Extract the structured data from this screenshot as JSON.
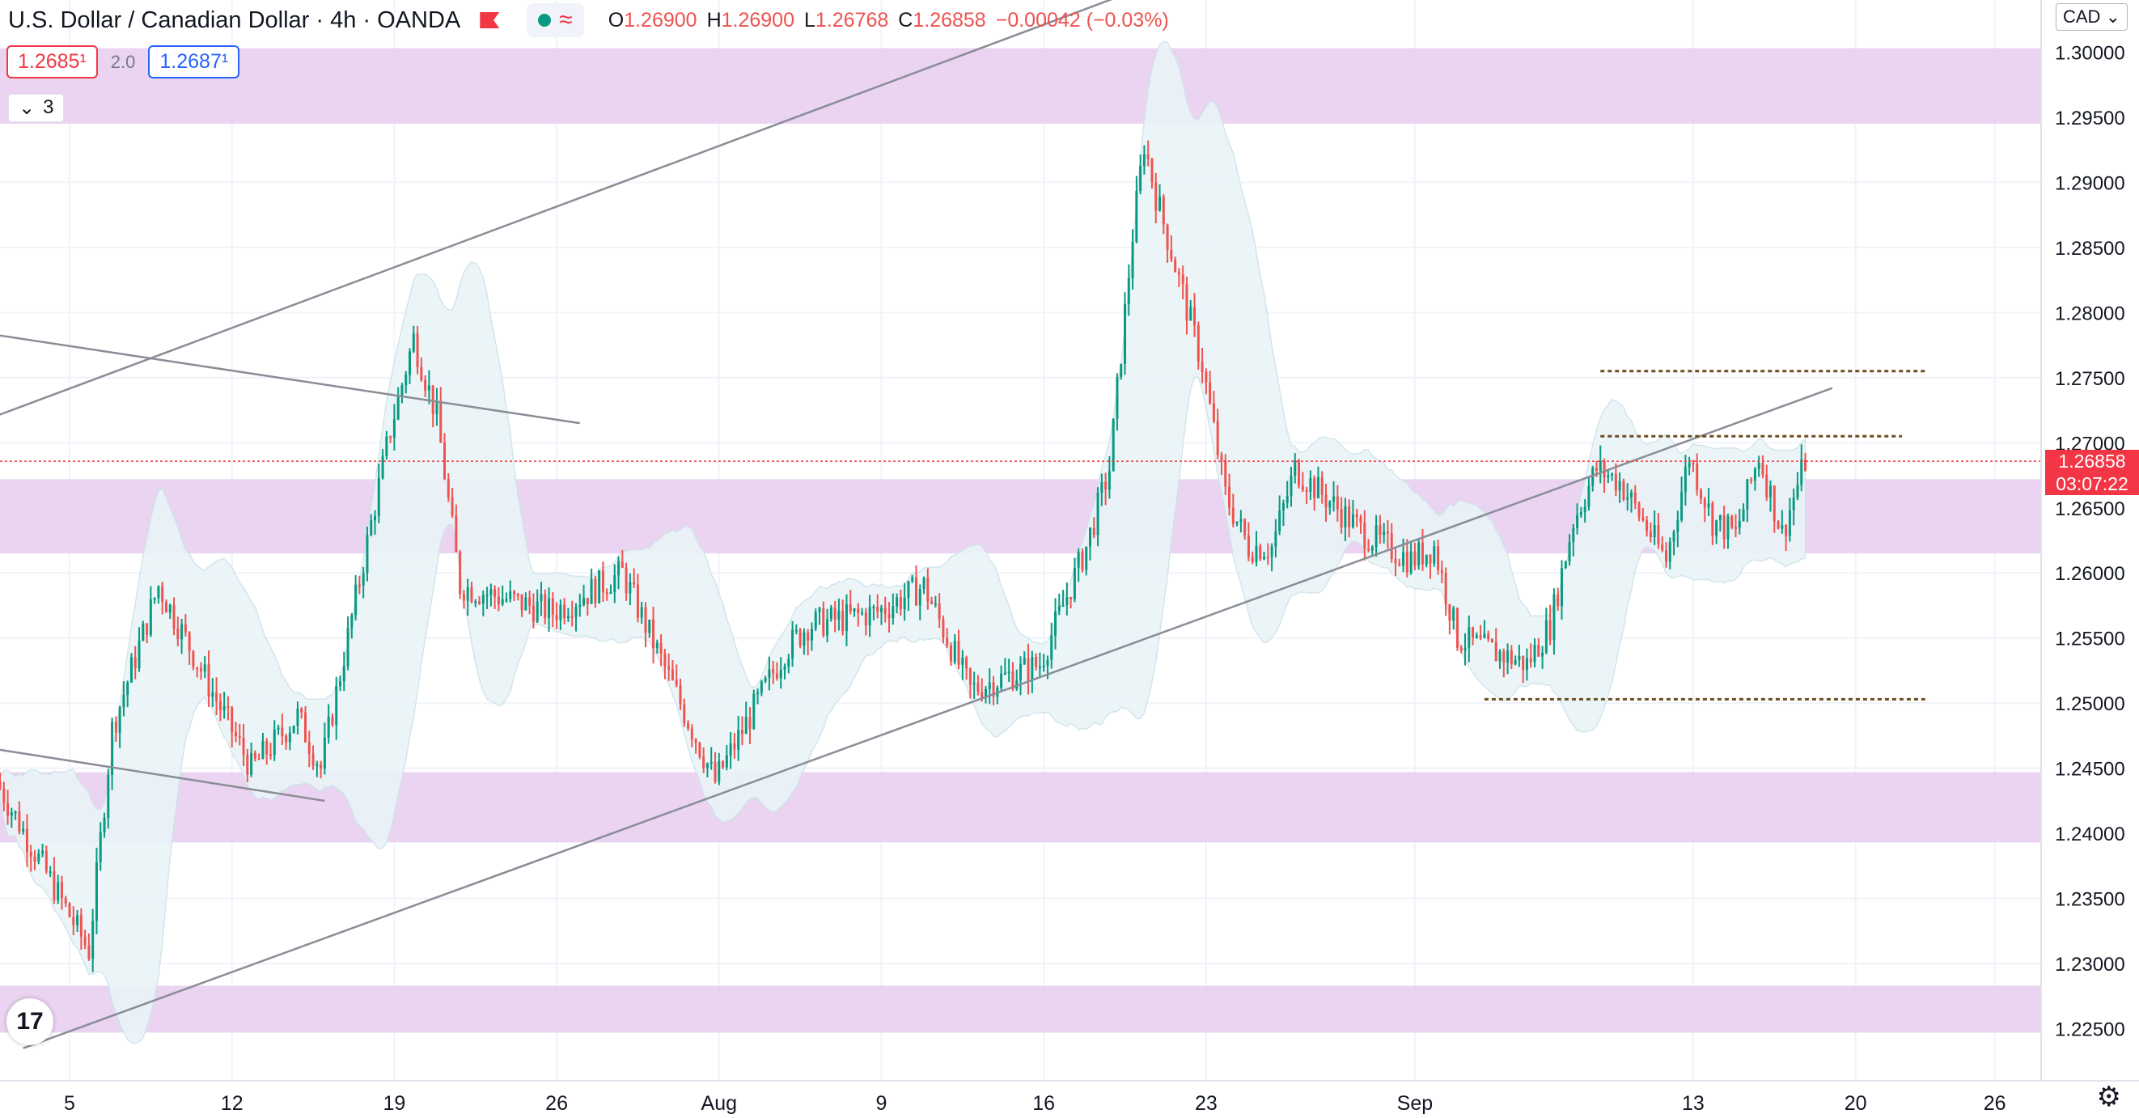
{
  "header": {
    "symbol": "U.S. Dollar / Canadian Dollar · 4h · OANDA",
    "ohlc": {
      "o": "1.26900",
      "h": "1.26900",
      "l": "1.26768",
      "c": "1.26858",
      "chg": "−0.00042 (−0.03%)"
    },
    "labels": {
      "o": "O",
      "h": "H",
      "l": "L",
      "c": "C"
    },
    "wave_glyph": "≈"
  },
  "trade": {
    "sell": "1.2685¹",
    "spread": "2.0",
    "buy": "1.2687¹"
  },
  "indicators": {
    "toggle_icon": "chevron-down-icon",
    "count": "3"
  },
  "currency": "CAD",
  "last_price": {
    "value": "1.26858",
    "countdown": "03:07:22"
  },
  "logo_text": "17",
  "colors": {
    "up": "#089981",
    "down": "#ef5350",
    "zone": "#e6cdee",
    "band": "#e9f5f8",
    "price_line": "#f23645"
  },
  "chart_data": {
    "type": "candlestick",
    "ylim": [
      1.221,
      1.304
    ],
    "y_ticks": [
      "1.22500",
      "1.23000",
      "1.23500",
      "1.24000",
      "1.24500",
      "1.25000",
      "1.25500",
      "1.26000",
      "1.26500",
      "1.27000",
      "1.27500",
      "1.28000",
      "1.28500",
      "1.29000",
      "1.29500",
      "1.30000"
    ],
    "x_labels": [
      "5",
      "12",
      "19",
      "26",
      "Aug",
      "9",
      "16",
      "23",
      "Sep",
      "13",
      "20",
      "26"
    ],
    "x_label_dates": [
      "2021-07-05",
      "2021-07-12",
      "2021-07-19",
      "2021-07-26",
      "2021-08-02",
      "2021-08-09",
      "2021-08-16",
      "2021-08-23",
      "2021-09-01",
      "2021-09-13",
      "2021-09-20",
      "2021-09-26"
    ],
    "x_range": [
      "2021-07-02",
      "2021-09-28"
    ],
    "zones": [
      [
        1.2945,
        1.3003
      ],
      [
        1.2615,
        1.2672
      ],
      [
        1.2393,
        1.2447
      ],
      [
        1.2247,
        1.2283
      ]
    ],
    "key_prices": [
      {
        "date": "2021-07-02",
        "price": 1.244
      },
      {
        "date": "2021-07-06",
        "price": 1.231
      },
      {
        "date": "2021-07-07",
        "price": 1.248
      },
      {
        "date": "2021-07-09",
        "price": 1.259
      },
      {
        "date": "2021-07-13",
        "price": 1.245
      },
      {
        "date": "2021-07-15",
        "price": 1.249
      },
      {
        "date": "2021-07-16",
        "price": 1.245
      },
      {
        "date": "2021-07-19",
        "price": 1.271
      },
      {
        "date": "2021-07-20",
        "price": 1.278
      },
      {
        "date": "2021-07-21",
        "price": 1.272
      },
      {
        "date": "2021-07-22",
        "price": 1.259
      },
      {
        "date": "2021-07-26",
        "price": 1.257
      },
      {
        "date": "2021-07-29",
        "price": 1.26
      },
      {
        "date": "2021-08-02",
        "price": 1.244
      },
      {
        "date": "2021-08-05",
        "price": 1.254
      },
      {
        "date": "2021-08-06",
        "price": 1.256
      },
      {
        "date": "2021-08-09",
        "price": 1.257
      },
      {
        "date": "2021-08-11",
        "price": 1.259
      },
      {
        "date": "2021-08-13",
        "price": 1.251
      },
      {
        "date": "2021-08-16",
        "price": 1.253
      },
      {
        "date": "2021-08-18",
        "price": 1.262
      },
      {
        "date": "2021-08-19",
        "price": 1.268
      },
      {
        "date": "2021-08-20",
        "price": 1.286
      },
      {
        "date": "2021-08-20T12",
        "price": 1.293
      },
      {
        "date": "2021-08-21",
        "price": 1.289
      },
      {
        "date": "2021-08-23",
        "price": 1.276
      },
      {
        "date": "2021-08-24",
        "price": 1.266
      },
      {
        "date": "2021-08-25",
        "price": 1.262
      },
      {
        "date": "2021-08-26",
        "price": 1.262
      },
      {
        "date": "2021-08-27",
        "price": 1.268
      },
      {
        "date": "2021-08-30",
        "price": 1.263
      },
      {
        "date": "2021-09-01",
        "price": 1.261
      },
      {
        "date": "2021-09-02",
        "price": 1.262
      },
      {
        "date": "2021-09-03",
        "price": 1.255
      },
      {
        "date": "2021-09-06",
        "price": 1.253
      },
      {
        "date": "2021-09-07",
        "price": 1.256
      },
      {
        "date": "2021-09-08",
        "price": 1.264
      },
      {
        "date": "2021-09-09",
        "price": 1.268
      },
      {
        "date": "2021-09-10",
        "price": 1.267
      },
      {
        "date": "2021-09-12",
        "price": 1.261
      },
      {
        "date": "2021-09-13",
        "price": 1.269
      },
      {
        "date": "2021-09-14",
        "price": 1.264
      },
      {
        "date": "2021-09-15",
        "price": 1.263
      },
      {
        "date": "2021-09-16",
        "price": 1.269
      },
      {
        "date": "2021-09-17",
        "price": 1.263
      },
      {
        "date": "2021-09-18",
        "price": 1.2686
      }
    ],
    "trendlines": [
      {
        "style": "solid",
        "p1": [
          "2021-07-01",
          1.2715
        ],
        "p2": [
          "2021-08-22",
          1.3061
        ]
      },
      {
        "style": "solid",
        "p1": [
          "2021-07-01",
          1.2785
        ],
        "p2": [
          "2021-07-27",
          1.2715
        ]
      },
      {
        "style": "solid",
        "p1": [
          "2021-07-01",
          1.2467
        ],
        "p2": [
          "2021-07-16",
          1.2425
        ]
      },
      {
        "style": "solid",
        "p1": [
          "2021-07-03",
          1.2235
        ],
        "p2": [
          "2021-09-19",
          1.2742
        ]
      },
      {
        "style": "dotted",
        "p1": [
          "2021-09-09",
          1.2755
        ],
        "p2": [
          "2021-09-23",
          1.2755
        ]
      },
      {
        "style": "dotted",
        "p1": [
          "2021-09-09",
          1.2705
        ],
        "p2": [
          "2021-09-22",
          1.2705
        ]
      },
      {
        "style": "dotted",
        "p1": [
          "2021-09-04",
          1.2503
        ],
        "p2": [
          "2021-09-23",
          1.2503
        ]
      }
    ]
  }
}
